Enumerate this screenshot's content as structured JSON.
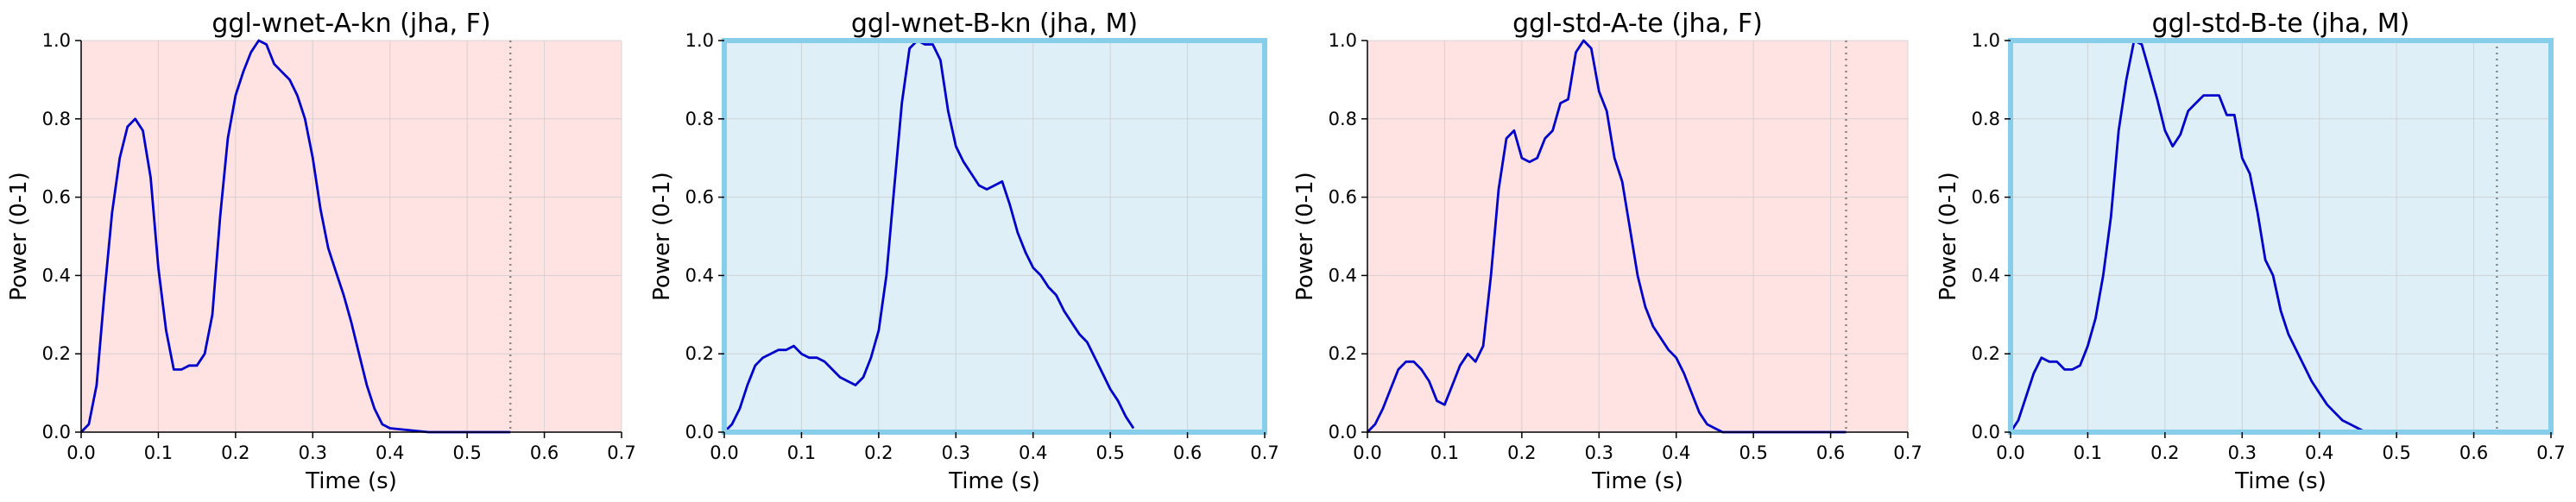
{
  "colors": {
    "female_bg": "#ffe3e3",
    "male_bg": "#deeff8",
    "male_border": "#87ceeb",
    "line": "#0000cc",
    "marker": "#888888",
    "grid": "#c8c8c8"
  },
  "chart_data": [
    {
      "type": "line",
      "title": "ggl-wnet-A-kn (jha, F)",
      "xlabel": "Time (s)",
      "ylabel": "Power (0-1)",
      "xlim": [
        0,
        0.7
      ],
      "ylim": [
        0,
        1
      ],
      "xticks": [
        "0.0",
        "0.1",
        "0.2",
        "0.3",
        "0.4",
        "0.5",
        "0.6",
        "0.7"
      ],
      "yticks": [
        "0.0",
        "0.2",
        "0.4",
        "0.6",
        "0.8",
        "1.0"
      ],
      "grid": true,
      "gender": "F",
      "end_marker": 0.556,
      "x": [
        0,
        0.01,
        0.02,
        0.03,
        0.04,
        0.05,
        0.06,
        0.07,
        0.08,
        0.09,
        0.1,
        0.11,
        0.12,
        0.13,
        0.14,
        0.15,
        0.16,
        0.17,
        0.18,
        0.19,
        0.2,
        0.21,
        0.22,
        0.23,
        0.24,
        0.25,
        0.26,
        0.27,
        0.28,
        0.29,
        0.3,
        0.31,
        0.32,
        0.33,
        0.34,
        0.35,
        0.36,
        0.37,
        0.38,
        0.39,
        0.4,
        0.45,
        0.5,
        0.556
      ],
      "y": [
        0.0,
        0.02,
        0.12,
        0.35,
        0.56,
        0.7,
        0.78,
        0.8,
        0.77,
        0.65,
        0.42,
        0.26,
        0.16,
        0.16,
        0.17,
        0.17,
        0.2,
        0.3,
        0.55,
        0.75,
        0.86,
        0.92,
        0.97,
        1.0,
        0.99,
        0.94,
        0.92,
        0.9,
        0.86,
        0.8,
        0.7,
        0.57,
        0.47,
        0.41,
        0.35,
        0.28,
        0.2,
        0.12,
        0.06,
        0.02,
        0.01,
        0.0,
        0.0,
        0.0
      ]
    },
    {
      "type": "line",
      "title": "ggl-wnet-B-kn (jha, M)",
      "xlabel": "Time (s)",
      "ylabel": "Power (0-1)",
      "xlim": [
        0,
        0.7
      ],
      "ylim": [
        0,
        1
      ],
      "xticks": [
        "0.0",
        "0.1",
        "0.2",
        "0.3",
        "0.4",
        "0.5",
        "0.6",
        "0.7"
      ],
      "yticks": [
        "0.0",
        "0.2",
        "0.4",
        "0.6",
        "0.8",
        "1.0"
      ],
      "grid": true,
      "gender": "M",
      "end_marker": null,
      "x": [
        0,
        0.01,
        0.02,
        0.03,
        0.04,
        0.05,
        0.06,
        0.07,
        0.08,
        0.09,
        0.1,
        0.11,
        0.12,
        0.13,
        0.14,
        0.15,
        0.16,
        0.17,
        0.18,
        0.19,
        0.2,
        0.21,
        0.22,
        0.23,
        0.24,
        0.25,
        0.26,
        0.27,
        0.28,
        0.29,
        0.3,
        0.31,
        0.32,
        0.33,
        0.34,
        0.35,
        0.36,
        0.37,
        0.38,
        0.39,
        0.4,
        0.41,
        0.42,
        0.43,
        0.44,
        0.45,
        0.46,
        0.47,
        0.48,
        0.49,
        0.5,
        0.51,
        0.52,
        0.53
      ],
      "y": [
        0.0,
        0.02,
        0.06,
        0.12,
        0.17,
        0.19,
        0.2,
        0.21,
        0.21,
        0.22,
        0.2,
        0.19,
        0.19,
        0.18,
        0.16,
        0.14,
        0.13,
        0.12,
        0.14,
        0.19,
        0.26,
        0.4,
        0.62,
        0.84,
        0.98,
        1.0,
        0.99,
        0.99,
        0.95,
        0.82,
        0.73,
        0.69,
        0.66,
        0.63,
        0.62,
        0.63,
        0.64,
        0.58,
        0.51,
        0.46,
        0.42,
        0.4,
        0.37,
        0.35,
        0.31,
        0.28,
        0.25,
        0.23,
        0.19,
        0.15,
        0.11,
        0.08,
        0.04,
        0.01
      ]
    },
    {
      "type": "line",
      "title": "ggl-std-A-te (jha, F)",
      "xlabel": "Time (s)",
      "ylabel": "Power (0-1)",
      "xlim": [
        0,
        0.7
      ],
      "ylim": [
        0,
        1
      ],
      "xticks": [
        "0.0",
        "0.1",
        "0.2",
        "0.3",
        "0.4",
        "0.5",
        "0.6",
        "0.7"
      ],
      "yticks": [
        "0.0",
        "0.2",
        "0.4",
        "0.6",
        "0.8",
        "1.0"
      ],
      "grid": true,
      "gender": "F",
      "end_marker": 0.62,
      "x": [
        0,
        0.01,
        0.02,
        0.03,
        0.04,
        0.05,
        0.06,
        0.07,
        0.08,
        0.09,
        0.1,
        0.11,
        0.12,
        0.13,
        0.14,
        0.15,
        0.16,
        0.17,
        0.18,
        0.19,
        0.2,
        0.21,
        0.22,
        0.23,
        0.24,
        0.25,
        0.26,
        0.27,
        0.28,
        0.29,
        0.3,
        0.31,
        0.32,
        0.33,
        0.34,
        0.35,
        0.36,
        0.37,
        0.38,
        0.39,
        0.4,
        0.41,
        0.42,
        0.43,
        0.44,
        0.45,
        0.46,
        0.47,
        0.5,
        0.55,
        0.62
      ],
      "y": [
        0.0,
        0.02,
        0.06,
        0.11,
        0.16,
        0.18,
        0.18,
        0.16,
        0.13,
        0.08,
        0.07,
        0.12,
        0.17,
        0.2,
        0.18,
        0.22,
        0.4,
        0.62,
        0.75,
        0.77,
        0.7,
        0.69,
        0.7,
        0.75,
        0.77,
        0.84,
        0.85,
        0.97,
        1.0,
        0.98,
        0.87,
        0.82,
        0.7,
        0.64,
        0.52,
        0.4,
        0.32,
        0.27,
        0.24,
        0.21,
        0.19,
        0.15,
        0.1,
        0.05,
        0.02,
        0.01,
        0.0,
        0.0,
        0.0,
        0.0,
        0.0
      ]
    },
    {
      "type": "line",
      "title": "ggl-std-B-te (jha, M)",
      "xlabel": "Time (s)",
      "ylabel": "Power (0-1)",
      "xlim": [
        0,
        0.7
      ],
      "ylim": [
        0,
        1
      ],
      "xticks": [
        "0.0",
        "0.1",
        "0.2",
        "0.3",
        "0.4",
        "0.5",
        "0.6",
        "0.7"
      ],
      "yticks": [
        "0.0",
        "0.2",
        "0.4",
        "0.6",
        "0.8",
        "1.0"
      ],
      "grid": true,
      "gender": "M",
      "end_marker": 0.63,
      "x": [
        0,
        0.01,
        0.02,
        0.03,
        0.04,
        0.05,
        0.06,
        0.07,
        0.08,
        0.09,
        0.1,
        0.11,
        0.12,
        0.13,
        0.14,
        0.15,
        0.16,
        0.17,
        0.18,
        0.19,
        0.2,
        0.21,
        0.22,
        0.23,
        0.24,
        0.25,
        0.26,
        0.27,
        0.28,
        0.29,
        0.3,
        0.31,
        0.32,
        0.33,
        0.34,
        0.35,
        0.36,
        0.37,
        0.38,
        0.39,
        0.4,
        0.41,
        0.42,
        0.43,
        0.44,
        0.45,
        0.46,
        0.47,
        0.48
      ],
      "y": [
        0.0,
        0.03,
        0.09,
        0.15,
        0.19,
        0.18,
        0.18,
        0.16,
        0.16,
        0.17,
        0.22,
        0.29,
        0.4,
        0.55,
        0.77,
        0.9,
        1.0,
        0.99,
        0.92,
        0.85,
        0.77,
        0.73,
        0.76,
        0.82,
        0.84,
        0.86,
        0.86,
        0.86,
        0.81,
        0.81,
        0.7,
        0.66,
        0.56,
        0.44,
        0.4,
        0.31,
        0.25,
        0.21,
        0.17,
        0.13,
        0.1,
        0.07,
        0.05,
        0.03,
        0.02,
        0.01,
        0.0,
        0.0,
        0.0
      ]
    }
  ]
}
